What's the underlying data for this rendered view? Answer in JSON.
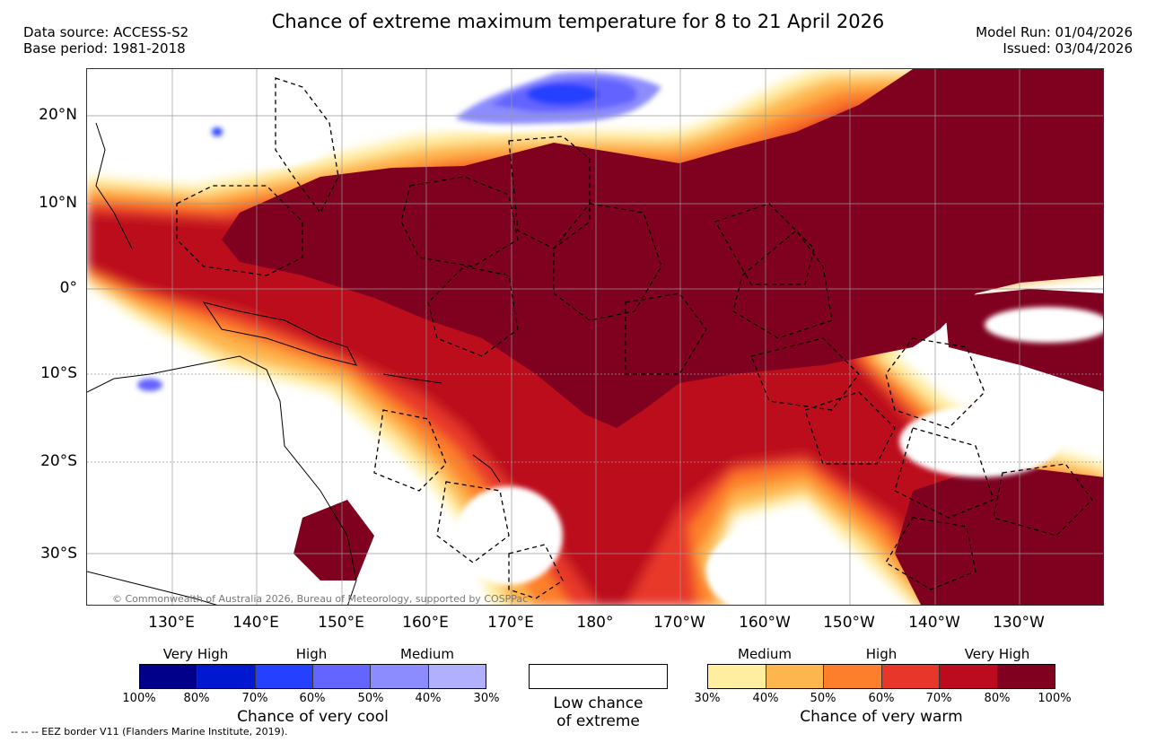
{
  "header": {
    "title": "Chance of extreme maximum temperature for 8 to 21 April 2026",
    "data_source": "Data source: ACCESS-S2",
    "base_period": "Base period: 1981-2018",
    "model_run": "Model Run: 01/04/2026",
    "issued": "Issued: 03/04/2026"
  },
  "axes": {
    "lat_labels": [
      "20°N",
      "10°N",
      "0°",
      "10°S",
      "20°S",
      "30°S"
    ],
    "lon_labels": [
      "130°E",
      "140°E",
      "150°E",
      "160°E",
      "170°E",
      "180°",
      "170°W",
      "160°W",
      "150°W",
      "140°W",
      "130°W"
    ]
  },
  "legend": {
    "cool": {
      "levels": [
        "Very High",
        "High",
        "Medium"
      ],
      "ticks": [
        "100%",
        "80%",
        "70%",
        "60%",
        "50%",
        "40%",
        "30%"
      ],
      "colors": [
        "#00008b",
        "#0018d0",
        "#2540ff",
        "#6464ff",
        "#8c8cff",
        "#b0b0ff"
      ],
      "caption": "Chance of very cool"
    },
    "low": {
      "caption_line1": "Low chance",
      "caption_line2": "of extreme",
      "color": "#ffffff"
    },
    "warm": {
      "levels": [
        "Medium",
        "High",
        "Very High"
      ],
      "ticks": [
        "30%",
        "40%",
        "50%",
        "60%",
        "70%",
        "80%",
        "100%"
      ],
      "colors": [
        "#ffeda0",
        "#fdb64e",
        "#fd7f2c",
        "#e8372a",
        "#bc0a1f",
        "#800020"
      ],
      "caption": "Chance of very warm"
    }
  },
  "credit": "© Commonwealth of Australia 2026, Bureau of Meteorology, supported by COSPPac",
  "eez_note": "-- -- -- EEZ border V11 (Flanders Marine Institute, 2019)."
}
